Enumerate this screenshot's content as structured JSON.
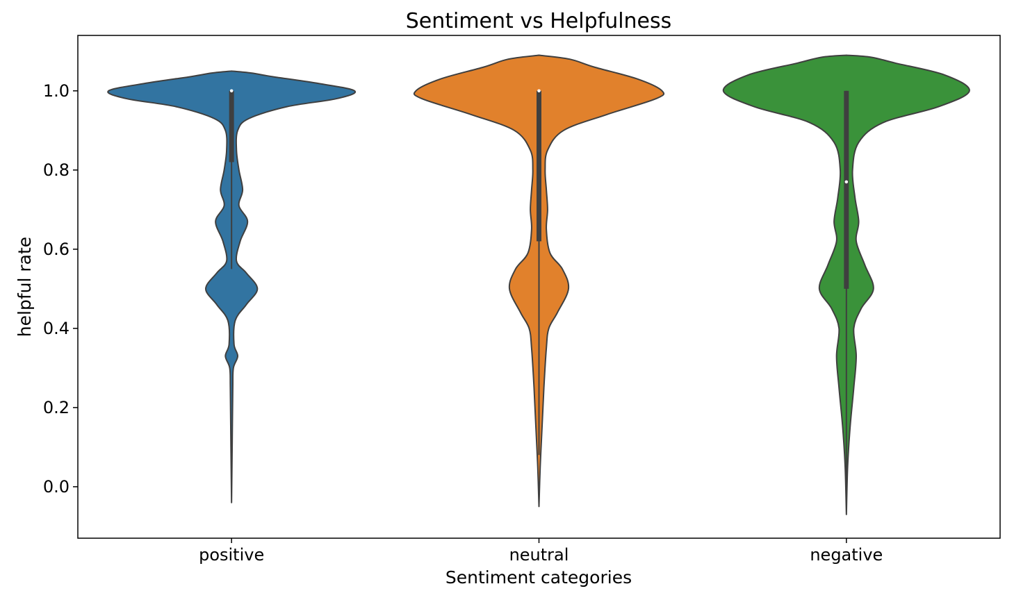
{
  "chart_data": {
    "type": "violin",
    "title": "Sentiment vs Helpfulness",
    "xlabel": "Sentiment categories",
    "ylabel": "helpful rate",
    "ylim": [
      -0.13,
      1.14
    ],
    "yticks": [
      0.0,
      0.2,
      0.4,
      0.6,
      0.8,
      1.0
    ],
    "ytick_labels": [
      "0.0",
      "0.2",
      "0.4",
      "0.6",
      "0.8",
      "1.0"
    ],
    "categories": [
      "positive",
      "neutral",
      "negative"
    ],
    "grid": false,
    "legend": "none",
    "colors": [
      "#3274a1",
      "#e1812c",
      "#3a923a"
    ],
    "edge_color": "#3f3f3f",
    "box_color": "#3f3f3f",
    "median_color": "#ffffff",
    "violins": [
      {
        "category": "positive",
        "color": "#3274a1",
        "median": 1.0,
        "q1": 0.82,
        "q3": 1.0,
        "whisker_low": 0.55,
        "whisker_high": 1.0,
        "range": [
          -0.04,
          1.05
        ],
        "density": [
          [
            -0.04,
            0.0
          ],
          [
            0.1,
            0.005
          ],
          [
            0.25,
            0.01
          ],
          [
            0.3,
            0.015
          ],
          [
            0.33,
            0.05
          ],
          [
            0.36,
            0.02
          ],
          [
            0.42,
            0.03
          ],
          [
            0.46,
            0.12
          ],
          [
            0.5,
            0.21
          ],
          [
            0.54,
            0.12
          ],
          [
            0.57,
            0.04
          ],
          [
            0.62,
            0.07
          ],
          [
            0.67,
            0.13
          ],
          [
            0.71,
            0.06
          ],
          [
            0.75,
            0.09
          ],
          [
            0.8,
            0.06
          ],
          [
            0.85,
            0.04
          ],
          [
            0.9,
            0.05
          ],
          [
            0.93,
            0.14
          ],
          [
            0.96,
            0.45
          ],
          [
            0.98,
            0.85
          ],
          [
            1.0,
            1.0
          ],
          [
            1.02,
            0.68
          ],
          [
            1.035,
            0.35
          ],
          [
            1.045,
            0.16
          ],
          [
            1.05,
            0.0
          ]
        ]
      },
      {
        "category": "neutral",
        "color": "#e1812c",
        "median": 1.0,
        "q1": 0.62,
        "q3": 1.0,
        "whisker_low": 0.08,
        "whisker_high": 1.0,
        "range": [
          -0.05,
          1.09
        ],
        "density": [
          [
            -0.05,
            0.0
          ],
          [
            0.05,
            0.01
          ],
          [
            0.15,
            0.025
          ],
          [
            0.25,
            0.04
          ],
          [
            0.35,
            0.06
          ],
          [
            0.4,
            0.08
          ],
          [
            0.44,
            0.15
          ],
          [
            0.5,
            0.24
          ],
          [
            0.55,
            0.19
          ],
          [
            0.59,
            0.09
          ],
          [
            0.65,
            0.06
          ],
          [
            0.7,
            0.07
          ],
          [
            0.75,
            0.06
          ],
          [
            0.8,
            0.05
          ],
          [
            0.85,
            0.07
          ],
          [
            0.9,
            0.2
          ],
          [
            0.94,
            0.55
          ],
          [
            0.98,
            0.95
          ],
          [
            1.0,
            1.0
          ],
          [
            1.03,
            0.8
          ],
          [
            1.06,
            0.45
          ],
          [
            1.08,
            0.25
          ],
          [
            1.09,
            0.0
          ]
        ]
      },
      {
        "category": "negative",
        "color": "#3a923a",
        "median": 0.77,
        "q1": 0.5,
        "q3": 1.0,
        "whisker_low": 0.0,
        "whisker_high": 1.0,
        "range": [
          -0.07,
          1.09
        ],
        "density": [
          [
            -0.07,
            0.0
          ],
          [
            0.05,
            0.01
          ],
          [
            0.15,
            0.03
          ],
          [
            0.25,
            0.06
          ],
          [
            0.33,
            0.08
          ],
          [
            0.4,
            0.06
          ],
          [
            0.45,
            0.12
          ],
          [
            0.5,
            0.22
          ],
          [
            0.56,
            0.15
          ],
          [
            0.62,
            0.08
          ],
          [
            0.67,
            0.1
          ],
          [
            0.73,
            0.07
          ],
          [
            0.8,
            0.05
          ],
          [
            0.87,
            0.1
          ],
          [
            0.92,
            0.3
          ],
          [
            0.96,
            0.75
          ],
          [
            1.0,
            1.0
          ],
          [
            1.04,
            0.8
          ],
          [
            1.07,
            0.4
          ],
          [
            1.085,
            0.2
          ],
          [
            1.09,
            0.0
          ]
        ]
      }
    ]
  }
}
